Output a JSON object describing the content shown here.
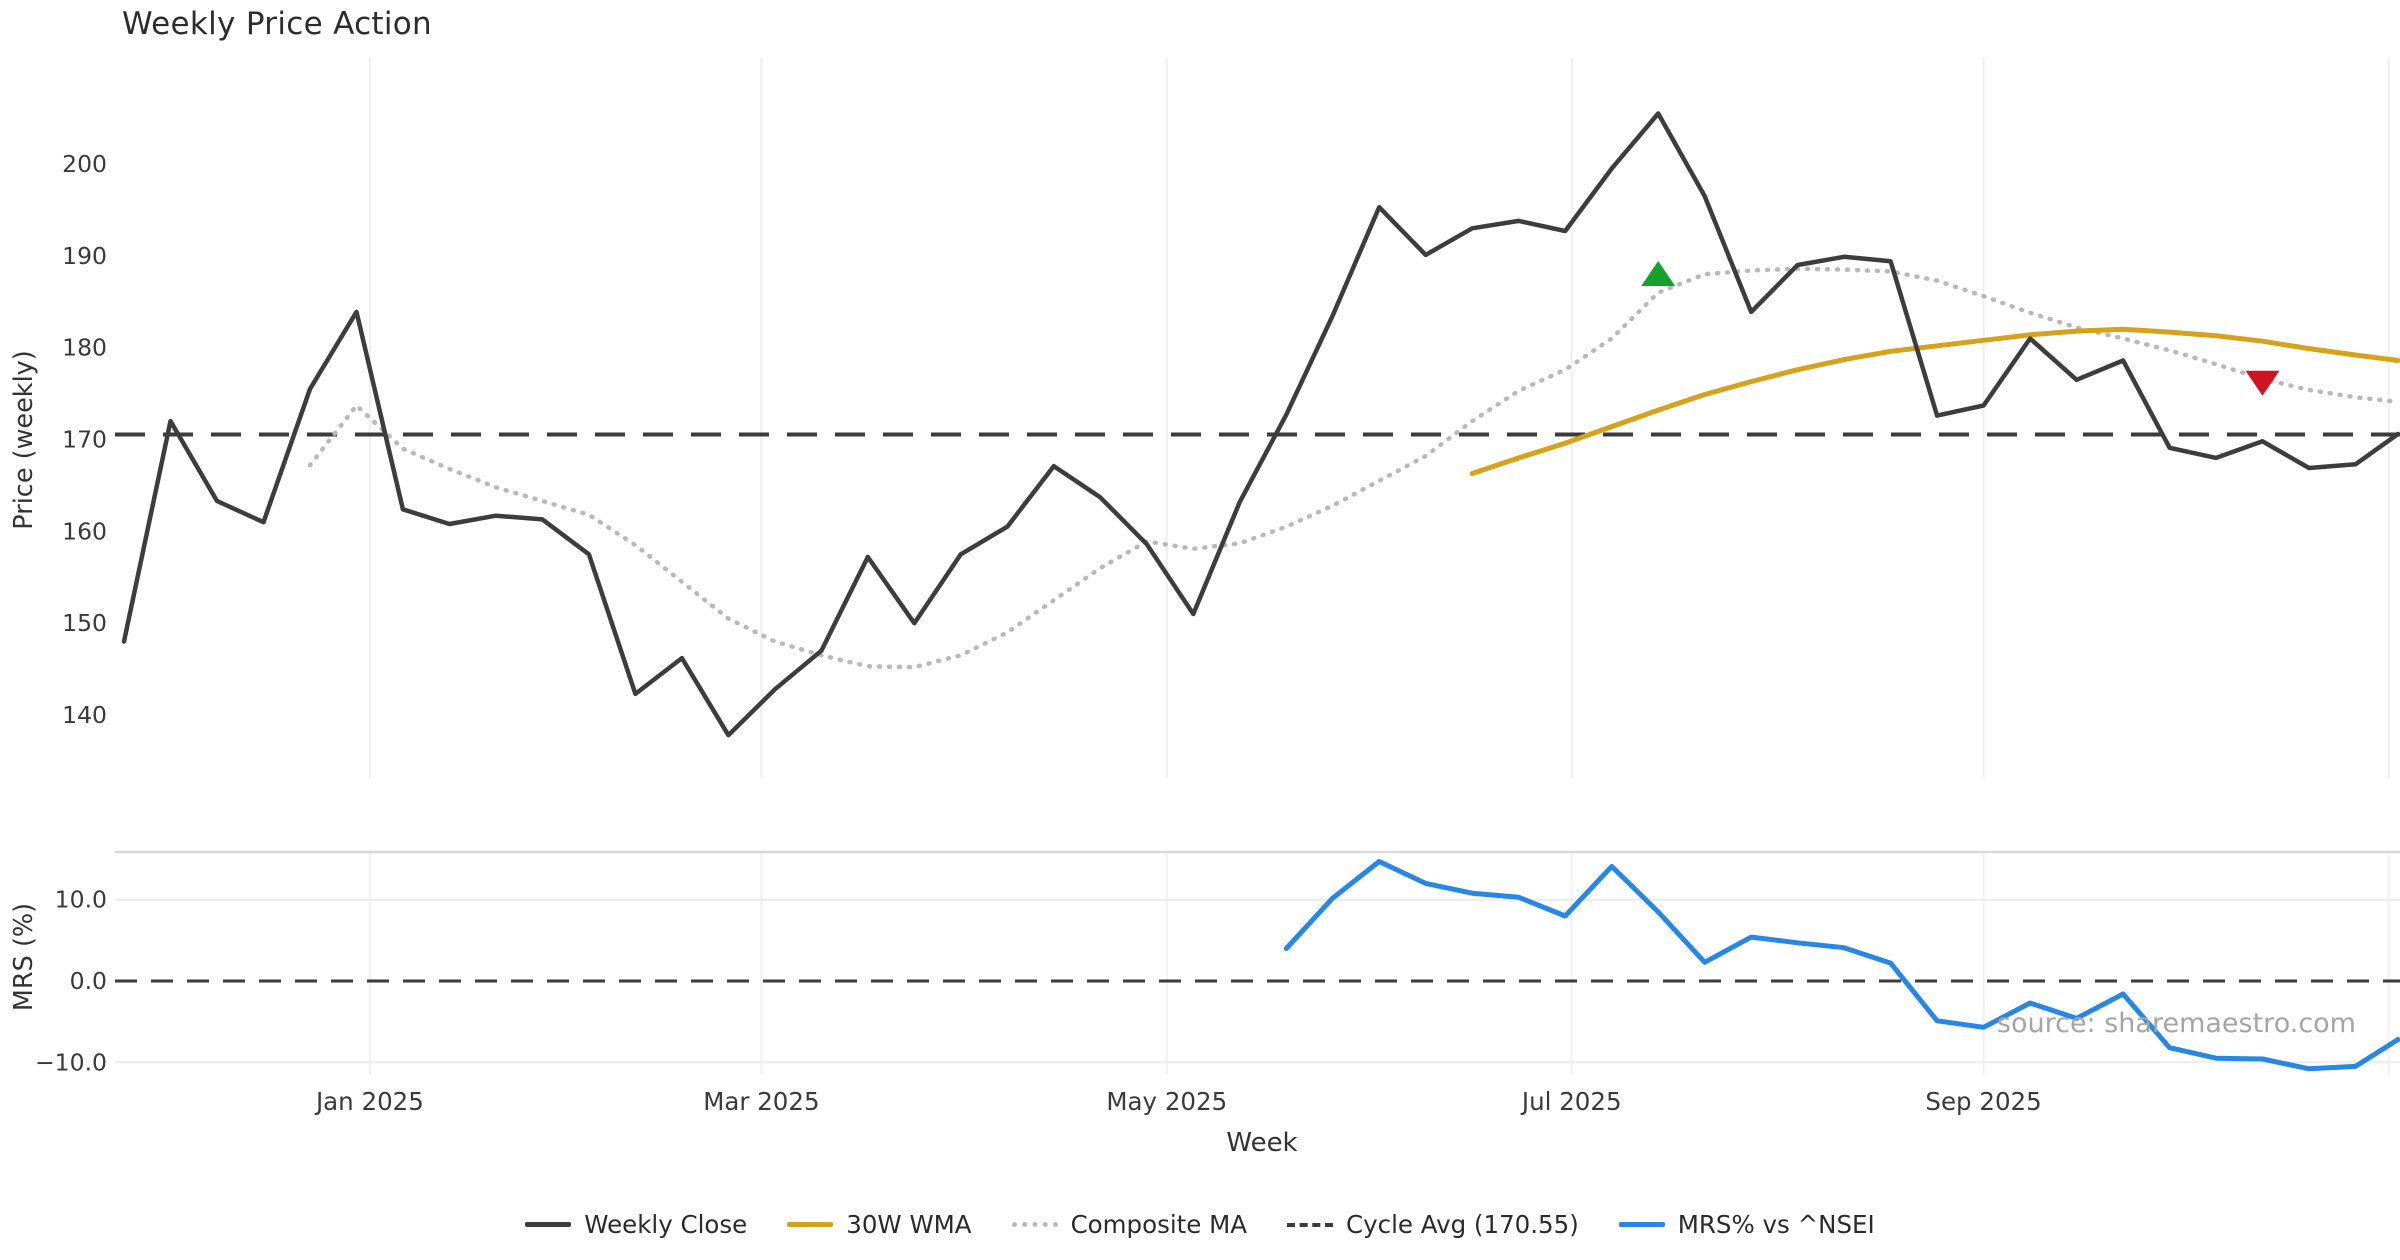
{
  "header": {
    "title": "Weekly Price Action"
  },
  "source": {
    "text": "source: sharemaestro.com"
  },
  "legend": {
    "items": [
      {
        "label": "Weekly Close",
        "style": "solid",
        "color": "#3d3d3d"
      },
      {
        "label": "30W WMA",
        "style": "solid",
        "color": "#d7a21b"
      },
      {
        "label": "Composite MA",
        "style": "dotted",
        "color": "#b9b9b9"
      },
      {
        "label": "Cycle Avg (170.55)",
        "style": "dashed",
        "color": "#3b3b3b"
      },
      {
        "label": "MRS% vs ^NSEI",
        "style": "solid",
        "color": "#2787e5"
      }
    ]
  },
  "chart_data": {
    "type": "line",
    "title": "Weekly Price Action",
    "xlabel": "Week",
    "x_unit": "week_index",
    "n_weeks": 50,
    "grid": "vertical-months",
    "legend_position": "bottom-center",
    "x_ticks": [
      {
        "label": "Jan 2025",
        "week": 5.29
      },
      {
        "label": "Mar 2025",
        "week": 13.71
      },
      {
        "label": "May 2025",
        "week": 22.43
      },
      {
        "label": "Jul 2025",
        "week": 31.14
      },
      {
        "label": "Sep 2025",
        "week": 40.0
      },
      {
        "label": "",
        "week": 48.71
      }
    ],
    "top_panel": {
      "ylabel": "Price (weekly)",
      "ylim": [
        133.1,
        211.5
      ],
      "cycle_avg": 170.55,
      "yticks": [
        {
          "label": "200",
          "value": 200
        },
        {
          "label": "190",
          "value": 190
        },
        {
          "label": "180",
          "value": 180
        },
        {
          "label": "170",
          "value": 170
        },
        {
          "label": "160",
          "value": 160
        },
        {
          "label": "150",
          "value": 150
        },
        {
          "label": "140",
          "value": 140
        }
      ],
      "series": [
        {
          "name": "Weekly Close",
          "color": "#3d3d3d",
          "style": "solid",
          "width": 4.5,
          "start_week": 0,
          "values": [
            148.0,
            172.0,
            163.3,
            161.0,
            175.5,
            183.9,
            162.4,
            160.8,
            161.7,
            161.3,
            157.5,
            142.3,
            146.2,
            137.8,
            142.8,
            147.0,
            157.2,
            150.0,
            157.5,
            160.5,
            167.1,
            163.7,
            158.6,
            151.0,
            163.2,
            172.7,
            183.5,
            195.3,
            190.1,
            193.0,
            193.8,
            192.7,
            199.5,
            205.5,
            196.5,
            183.9,
            189.0,
            189.9,
            189.4,
            172.6,
            173.7,
            181.0,
            176.5,
            178.6,
            169.1,
            168.0,
            169.8,
            166.9,
            167.3,
            170.6
          ]
        },
        {
          "name": "30W WMA",
          "color": "#d7a21b",
          "style": "solid",
          "width": 5,
          "start_week": 29,
          "values": [
            166.3,
            168.0,
            169.6,
            171.4,
            173.2,
            174.9,
            176.3,
            177.6,
            178.7,
            179.6,
            180.2,
            180.8,
            181.4,
            181.8,
            182.0,
            181.7,
            181.3,
            180.7,
            179.9,
            179.2,
            178.6
          ]
        },
        {
          "name": "Composite MA",
          "color": "#b9b9b9",
          "style": "dotted",
          "width": 4.5,
          "start_week": 4,
          "values": [
            167.2,
            173.7,
            169.0,
            166.8,
            164.8,
            163.3,
            161.8,
            158.5,
            154.5,
            150.5,
            148.0,
            146.5,
            145.3,
            145.2,
            146.5,
            149.0,
            152.5,
            156.0,
            158.9,
            158.1,
            158.7,
            160.5,
            162.8,
            165.5,
            168.2,
            172.0,
            175.3,
            177.6,
            181.0,
            186.0,
            188.0,
            188.4,
            188.6,
            188.5,
            188.3,
            187.3,
            185.6,
            183.8,
            182.2,
            181.0,
            179.7,
            178.2,
            176.6,
            175.4,
            174.6,
            174.1
          ]
        }
      ],
      "markers": [
        {
          "type": "triangle-up",
          "color": "#16a02c",
          "week": 33,
          "value": 187.8,
          "name": "buy-signal"
        },
        {
          "type": "triangle-down",
          "color": "#cd1420",
          "week": 46,
          "value": 176.4,
          "name": "sell-signal"
        }
      ]
    },
    "bottom_panel": {
      "ylabel": "MRS (%)",
      "ylim": [
        -11.6,
        15.9
      ],
      "zero_line": 0,
      "yticks": [
        {
          "label": "10.0",
          "value": 10
        },
        {
          "label": "0.0",
          "value": 0
        },
        {
          "label": "−10.0",
          "value": -10
        }
      ],
      "series": [
        {
          "name": "MRS% vs ^NSEI",
          "color": "#2787e5",
          "style": "solid",
          "width": 5,
          "start_week": 25,
          "values": [
            4.0,
            10.2,
            14.7,
            12.0,
            10.8,
            10.3,
            8.0,
            14.1,
            8.5,
            2.3,
            5.4,
            4.7,
            4.1,
            2.2,
            -4.9,
            -5.7,
            -2.7,
            -4.6,
            -1.6,
            -8.2,
            -9.5,
            -9.6,
            -10.8,
            -10.5,
            -7.2
          ]
        }
      ]
    }
  }
}
